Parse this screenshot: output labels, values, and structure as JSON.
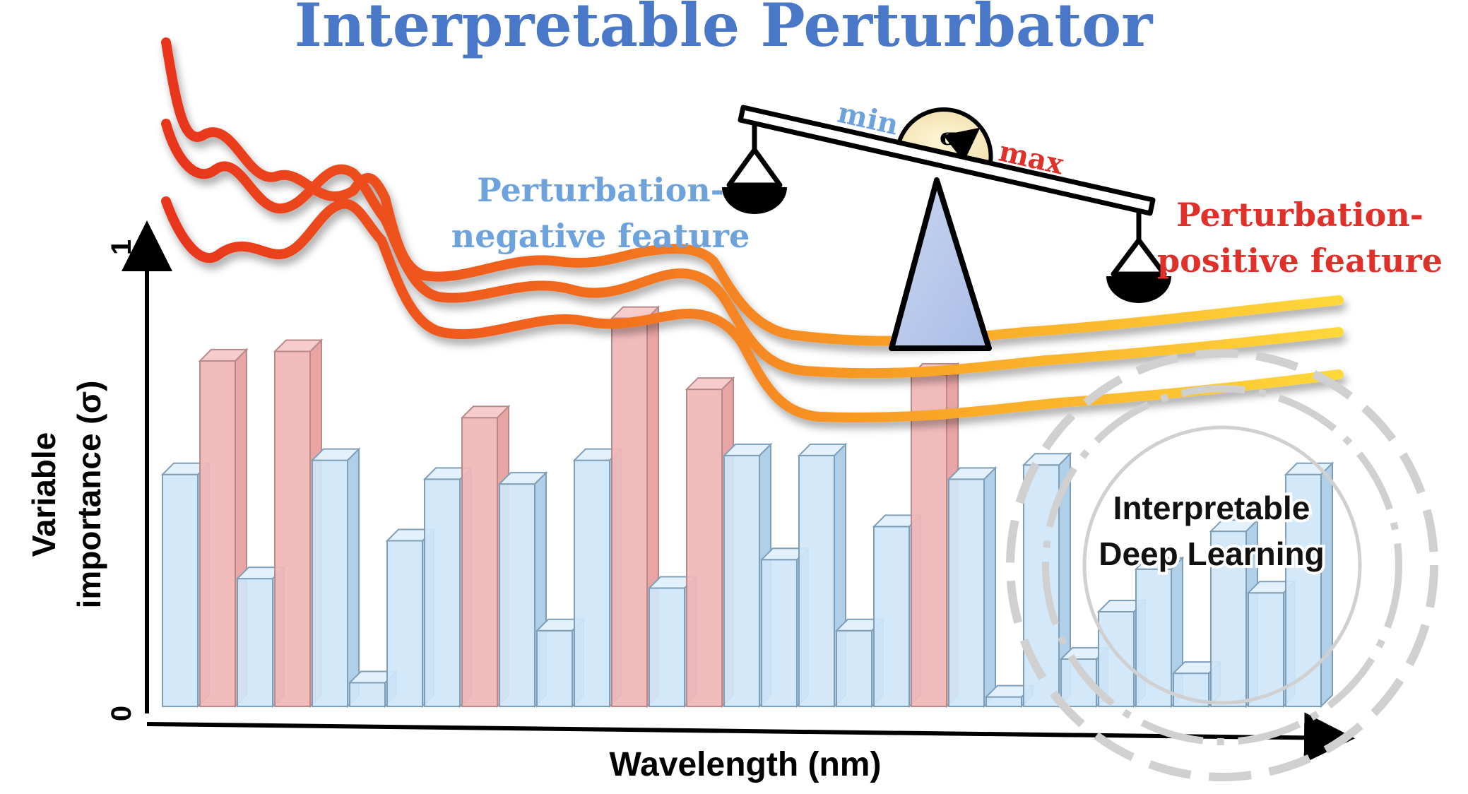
{
  "title": "Interpretable Perturbator",
  "axes": {
    "y_label_line1": "Variable",
    "y_label_line2": "importance (σ)",
    "y_tick_top": "1",
    "y_tick_bottom": "0",
    "x_label": "Wavelength (nm)"
  },
  "balance": {
    "min_label": "min",
    "max_label": "max",
    "sigma_symbol": "σ",
    "negative_line1": "Perturbation-",
    "negative_line2": "negative feature",
    "positive_line1": "Perturbation-",
    "positive_line2": "positive feature"
  },
  "badge": {
    "line1": "Interpretable",
    "line2": "Deep Learning"
  },
  "colors": {
    "title": "#4a78c8",
    "negative": "#6ea2dc",
    "positive": "#e0302a",
    "bar_blue": "#cfe6f8",
    "bar_red": "#f2b6b6",
    "curve_start": "#e8341c",
    "curve_end": "#ffd23a"
  },
  "chart_data": {
    "type": "bar",
    "ylim": [
      0,
      1
    ],
    "bars": [
      {
        "value": 0.49,
        "kind": "negative"
      },
      {
        "value": 0.73,
        "kind": "positive"
      },
      {
        "value": 0.27,
        "kind": "negative"
      },
      {
        "value": 0.75,
        "kind": "positive"
      },
      {
        "value": 0.52,
        "kind": "negative"
      },
      {
        "value": 0.05,
        "kind": "negative"
      },
      {
        "value": 0.35,
        "kind": "negative"
      },
      {
        "value": 0.48,
        "kind": "negative"
      },
      {
        "value": 0.61,
        "kind": "positive"
      },
      {
        "value": 0.47,
        "kind": "negative"
      },
      {
        "value": 0.16,
        "kind": "negative"
      },
      {
        "value": 0.52,
        "kind": "negative"
      },
      {
        "value": 0.82,
        "kind": "positive"
      },
      {
        "value": 0.25,
        "kind": "negative"
      },
      {
        "value": 0.67,
        "kind": "positive"
      },
      {
        "value": 0.53,
        "kind": "negative"
      },
      {
        "value": 0.31,
        "kind": "negative"
      },
      {
        "value": 0.53,
        "kind": "negative"
      },
      {
        "value": 0.16,
        "kind": "negative"
      },
      {
        "value": 0.38,
        "kind": "negative"
      },
      {
        "value": 0.7,
        "kind": "positive"
      },
      {
        "value": 0.48,
        "kind": "negative"
      },
      {
        "value": 0.02,
        "kind": "negative"
      },
      {
        "value": 0.51,
        "kind": "negative"
      },
      {
        "value": 0.1,
        "kind": "negative"
      },
      {
        "value": 0.2,
        "kind": "negative"
      },
      {
        "value": 0.29,
        "kind": "negative"
      },
      {
        "value": 0.07,
        "kind": "negative"
      },
      {
        "value": 0.37,
        "kind": "negative"
      },
      {
        "value": 0.24,
        "kind": "negative"
      },
      {
        "value": 0.49,
        "kind": "negative"
      }
    ]
  }
}
